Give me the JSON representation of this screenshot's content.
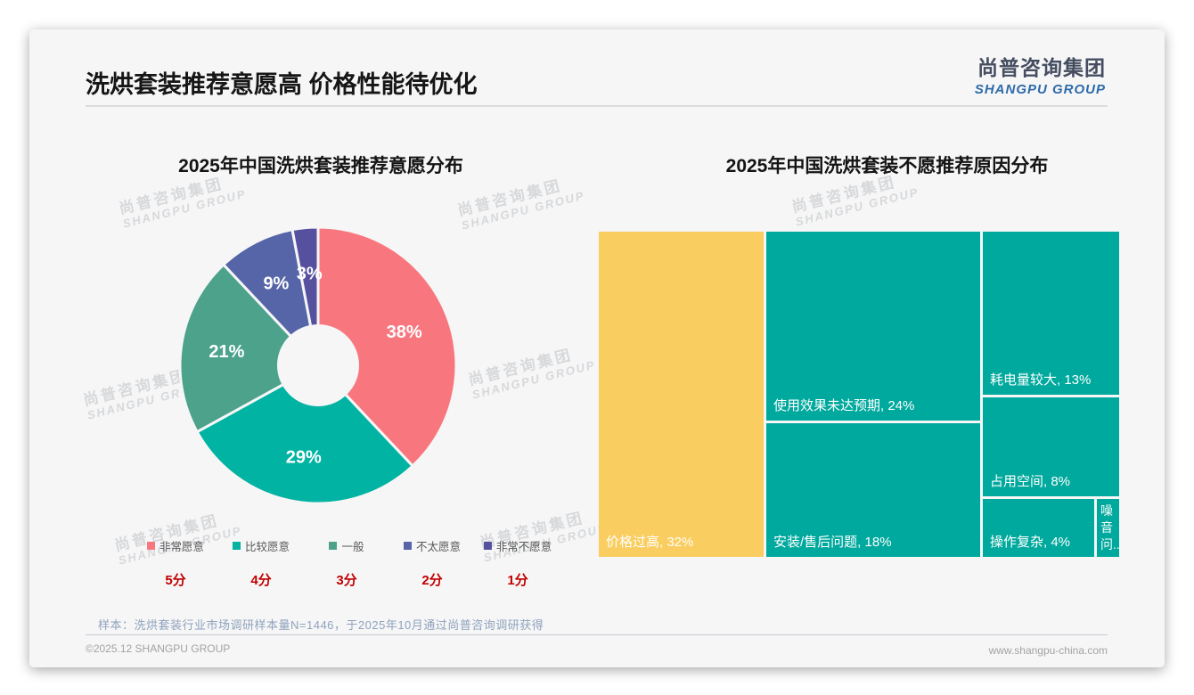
{
  "header": {
    "title": "洗烘套装推荐意愿高 价格性能待优化",
    "logo_cn": "尚普咨询集团",
    "logo_en": "SHANGPU GROUP"
  },
  "watermark": {
    "cn": "尚普咨询集团",
    "en": "SHANGPU GROUP"
  },
  "footer": {
    "note": "样本：洗烘套装行业市场调研样本量N=1446，于2025年10月通过尚普咨询调研获得",
    "copyright": "©2025.12 SHANGPU GROUP",
    "website": "www.shangpu-china.com"
  },
  "colors": {
    "card_bg": "#F6F6F7",
    "score_red": "#C00000",
    "legend_text": "#595959"
  },
  "chart_data": [
    {
      "type": "pie",
      "title": "2025年中国洗烘套装推荐意愿分布",
      "donut": true,
      "legend_position": "bottom",
      "categories": [
        "非常愿意",
        "比较愿意",
        "一般",
        "不太愿意",
        "非常不愿意"
      ],
      "values": [
        38,
        29,
        21,
        9,
        3
      ],
      "data_labels": [
        "38%",
        "29%",
        "21%",
        "9%",
        "3%"
      ],
      "scores": [
        "5分",
        "4分",
        "3分",
        "2分",
        "1分"
      ],
      "colors": [
        "#F8777F",
        "#00B3A2",
        "#4DA28C",
        "#5565A8",
        "#55519E"
      ]
    },
    {
      "type": "treemap",
      "title": "2025年中国洗烘套装不愿推荐原因分布",
      "items": [
        {
          "label": "价格过高",
          "value": 32,
          "display": "价格过高, 32%",
          "color": "#F9CD5F"
        },
        {
          "label": "使用效果未达预期",
          "value": 24,
          "display": "使用效果未达预期, 24%",
          "color": "#00A99D"
        },
        {
          "label": "安装/售后问题",
          "value": 18,
          "display": "安装/售后问题, 18%",
          "color": "#00A99D"
        },
        {
          "label": "耗电量较大",
          "value": 13,
          "display": "耗电量较大, 13%",
          "color": "#00A99D"
        },
        {
          "label": "占用空间",
          "value": 8,
          "display": "占用空间, 8%",
          "color": "#00A99D"
        },
        {
          "label": "操作复杂",
          "value": 4,
          "display": "操作复杂, 4%",
          "color": "#00A99D"
        },
        {
          "label": "噪音问题",
          "value": 1,
          "display": "噪音问..",
          "display_lines": [
            "噪",
            "音",
            "问.."
          ],
          "color": "#00A99D"
        }
      ]
    }
  ]
}
